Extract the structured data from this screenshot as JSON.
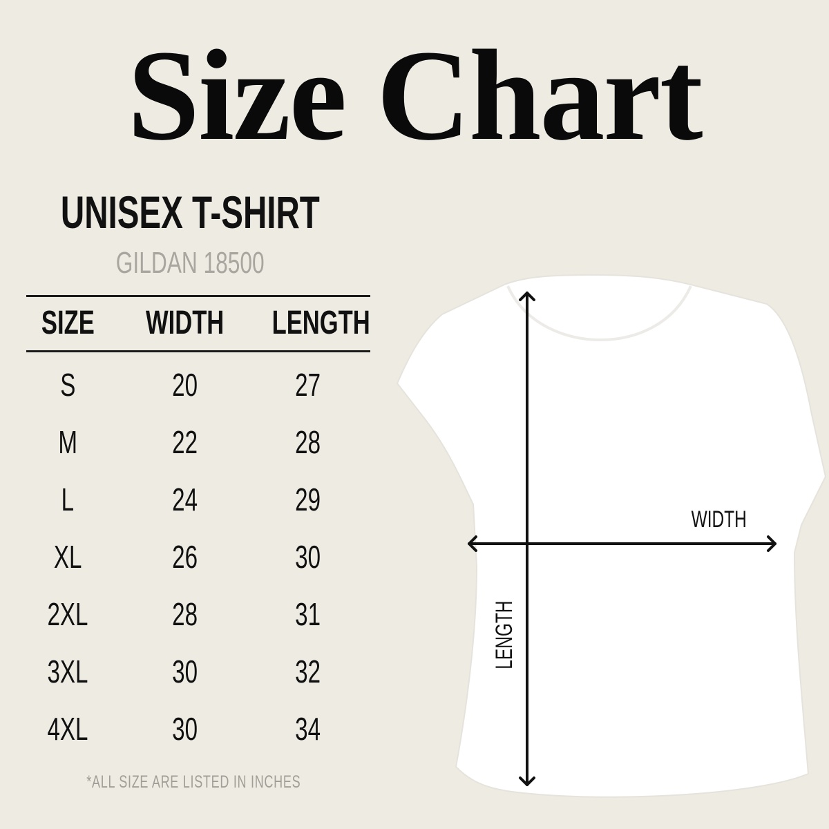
{
  "title": "Size Chart",
  "product": "UNISEX T-SHIRT",
  "brand": "GILDAN 18500",
  "table": {
    "headers": [
      "SIZE",
      "WIDTH",
      "LENGTH"
    ],
    "rows": [
      [
        "S",
        "20",
        "27"
      ],
      [
        "M",
        "22",
        "28"
      ],
      [
        "L",
        "24",
        "29"
      ],
      [
        "XL",
        "26",
        "30"
      ],
      [
        "2XL",
        "28",
        "31"
      ],
      [
        "3XL",
        "30",
        "32"
      ],
      [
        "4XL",
        "30",
        "34"
      ]
    ]
  },
  "note": "*ALL SIZE ARE LISTED IN INCHES",
  "diagram": {
    "width_label": "WIDTH",
    "length_label": "LENGTH"
  },
  "colors": {
    "background": "#eeebe2",
    "text": "#111111",
    "muted": "#a9a6a0",
    "shirt": "#ffffff"
  }
}
